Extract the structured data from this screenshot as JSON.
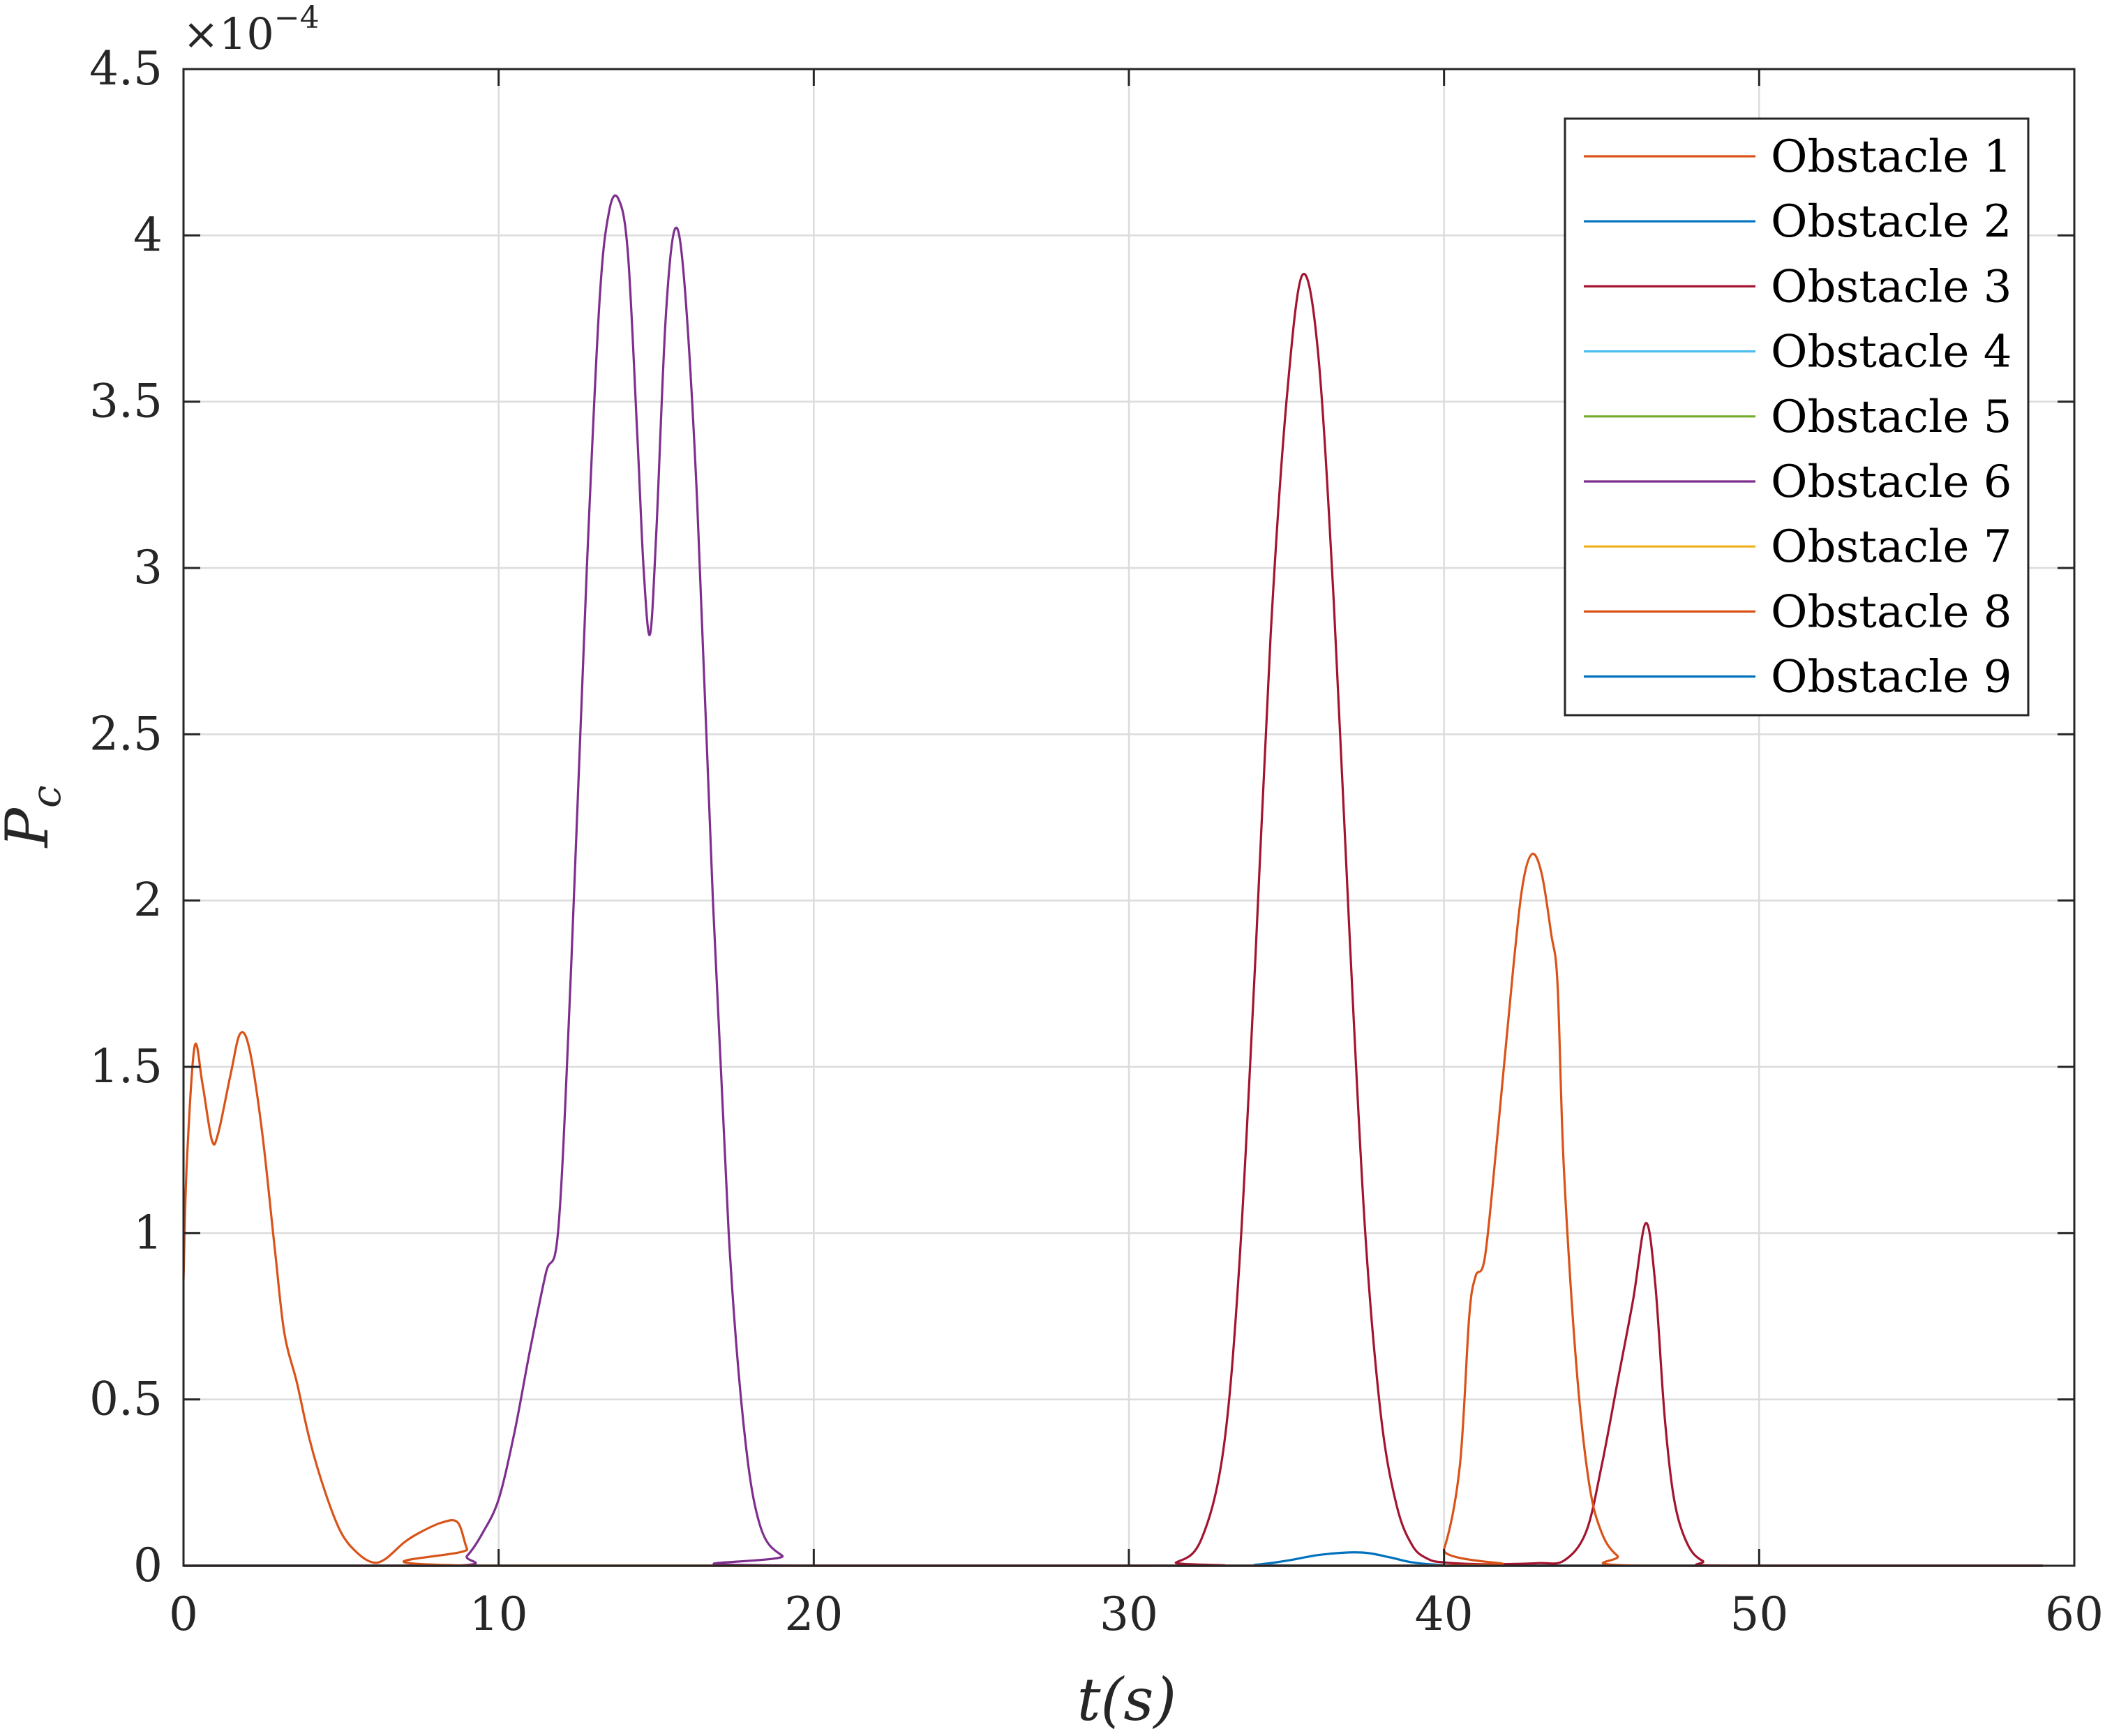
{
  "chart_data": {
    "type": "line",
    "title": "",
    "xlabel": "t(s)",
    "ylabel": "P_c",
    "ylabel_main": "P",
    "ylabel_sub": "c",
    "y_exponent_label": "×10",
    "y_exponent_power": "−4",
    "xlim": [
      0,
      60
    ],
    "ylim": [
      0,
      4.5
    ],
    "y_scale_note": "values shown in units of 1e-4",
    "x_ticks": [
      "0",
      "10",
      "20",
      "30",
      "40",
      "50",
      "60"
    ],
    "x_tick_values": [
      0,
      10,
      20,
      30,
      40,
      50,
      60
    ],
    "y_ticks": [
      "0",
      "0.5",
      "1",
      "1.5",
      "2",
      "2.5",
      "3",
      "3.5",
      "4",
      "4.5"
    ],
    "y_tick_values": [
      0,
      0.5,
      1,
      1.5,
      2,
      2.5,
      3,
      3.5,
      4,
      4.5
    ],
    "grid": true,
    "legend_position": "top-right",
    "series": [
      {
        "name": "Obstacle 1",
        "color": "#D95319",
        "points": [
          [
            0,
            0
          ],
          [
            59,
            0
          ]
        ]
      },
      {
        "name": "Obstacle 2",
        "color": "#0072BD",
        "points": [
          [
            0,
            0
          ],
          [
            33,
            0
          ],
          [
            34,
            0.003
          ],
          [
            35,
            0.015
          ],
          [
            36,
            0.032
          ],
          [
            37,
            0.04
          ],
          [
            37.6,
            0.038
          ],
          [
            38.3,
            0.025
          ],
          [
            39,
            0.01
          ],
          [
            40,
            0.002
          ],
          [
            41,
            0
          ],
          [
            59,
            0
          ]
        ]
      },
      {
        "name": "Obstacle 3",
        "color": "#A2142F",
        "points": [
          [
            0,
            0
          ],
          [
            30.5,
            0
          ],
          [
            31.5,
            0.01
          ],
          [
            32.3,
            0.08
          ],
          [
            33,
            0.35
          ],
          [
            33.5,
            0.9
          ],
          [
            34,
            1.8
          ],
          [
            34.5,
            2.8
          ],
          [
            35,
            3.5
          ],
          [
            35.5,
            3.88
          ],
          [
            36,
            3.65
          ],
          [
            36.5,
            2.9
          ],
          [
            37,
            1.9
          ],
          [
            37.5,
            1.0
          ],
          [
            38,
            0.45
          ],
          [
            38.5,
            0.18
          ],
          [
            39,
            0.06
          ],
          [
            39.5,
            0.02
          ],
          [
            40,
            0.01
          ],
          [
            41,
            0.005
          ],
          [
            42,
            0.005
          ],
          [
            43,
            0.008
          ],
          [
            43.8,
            0.015
          ],
          [
            44.5,
            0.1
          ],
          [
            45,
            0.3
          ],
          [
            45.5,
            0.55
          ],
          [
            46,
            0.8
          ],
          [
            46.4,
            1.03
          ],
          [
            46.7,
            0.85
          ],
          [
            47,
            0.45
          ],
          [
            47.3,
            0.2
          ],
          [
            47.7,
            0.07
          ],
          [
            48.2,
            0.015
          ],
          [
            49,
            0
          ],
          [
            59,
            0
          ]
        ]
      },
      {
        "name": "Obstacle 4",
        "color": "#4DBEEE",
        "points": [
          [
            0,
            0
          ],
          [
            59,
            0
          ]
        ]
      },
      {
        "name": "Obstacle 5",
        "color": "#77AC30",
        "points": [
          [
            0,
            0
          ],
          [
            59,
            0
          ]
        ]
      },
      {
        "name": "Obstacle 6",
        "color": "#7E2F8E",
        "points": [
          [
            0,
            0
          ],
          [
            8.5,
            0
          ],
          [
            9,
            0.03
          ],
          [
            9.5,
            0.1
          ],
          [
            10,
            0.2
          ],
          [
            10.5,
            0.4
          ],
          [
            11,
            0.65
          ],
          [
            11.5,
            0.88
          ],
          [
            11.9,
            1.02
          ],
          [
            12.3,
            1.8
          ],
          [
            12.8,
            3.0
          ],
          [
            13.2,
            3.8
          ],
          [
            13.5,
            4.07
          ],
          [
            13.8,
            4.11
          ],
          [
            14.1,
            3.95
          ],
          [
            14.4,
            3.4
          ],
          [
            14.6,
            3.0
          ],
          [
            14.8,
            2.8
          ],
          [
            15.0,
            3.1
          ],
          [
            15.3,
            3.75
          ],
          [
            15.6,
            4.02
          ],
          [
            15.9,
            3.85
          ],
          [
            16.3,
            3.2
          ],
          [
            16.8,
            2.0
          ],
          [
            17.3,
            1.0
          ],
          [
            17.8,
            0.4
          ],
          [
            18.3,
            0.12
          ],
          [
            19,
            0.03
          ],
          [
            20,
            0
          ],
          [
            59,
            0
          ]
        ]
      },
      {
        "name": "Obstacle 7",
        "color": "#EDB120",
        "points": [
          [
            0,
            0
          ],
          [
            59,
            0
          ]
        ]
      },
      {
        "name": "Obstacle 8",
        "color": "#D95319",
        "points": [
          [
            0,
            0.86
          ],
          [
            0.1,
            1.2
          ],
          [
            0.35,
            1.56
          ],
          [
            0.6,
            1.45
          ],
          [
            0.9,
            1.28
          ],
          [
            1.1,
            1.3
          ],
          [
            1.5,
            1.48
          ],
          [
            1.8,
            1.6
          ],
          [
            2.1,
            1.55
          ],
          [
            2.5,
            1.3
          ],
          [
            2.9,
            0.95
          ],
          [
            3.2,
            0.7
          ],
          [
            3.6,
            0.55
          ],
          [
            4.0,
            0.38
          ],
          [
            4.5,
            0.22
          ],
          [
            5.0,
            0.1
          ],
          [
            5.5,
            0.04
          ],
          [
            6.0,
            0.01
          ],
          [
            6.4,
            0.02
          ],
          [
            7.0,
            0.07
          ],
          [
            7.5,
            0.1
          ],
          [
            8.2,
            0.13
          ],
          [
            8.7,
            0.13
          ],
          [
            9.0,
            0.05
          ],
          [
            9.3,
            0.0
          ],
          [
            39.5,
            0
          ],
          [
            40.0,
            0.05
          ],
          [
            40.5,
            0.3
          ],
          [
            40.8,
            0.75
          ],
          [
            41.0,
            0.87
          ],
          [
            41.3,
            0.93
          ],
          [
            41.7,
            1.3
          ],
          [
            42.2,
            1.8
          ],
          [
            42.5,
            2.05
          ],
          [
            42.8,
            2.14
          ],
          [
            43.1,
            2.08
          ],
          [
            43.4,
            1.9
          ],
          [
            43.6,
            1.75
          ],
          [
            43.8,
            1.2
          ],
          [
            44.2,
            0.6
          ],
          [
            44.6,
            0.25
          ],
          [
            45.0,
            0.1
          ],
          [
            45.5,
            0.03
          ],
          [
            46.2,
            0
          ],
          [
            59,
            0
          ]
        ]
      },
      {
        "name": "Obstacle 9",
        "color": "#0072BD",
        "points": [
          [
            0,
            0
          ],
          [
            59,
            0
          ]
        ]
      }
    ],
    "draw_order": [
      0,
      1,
      3,
      4,
      6,
      8,
      5,
      2,
      7
    ]
  }
}
